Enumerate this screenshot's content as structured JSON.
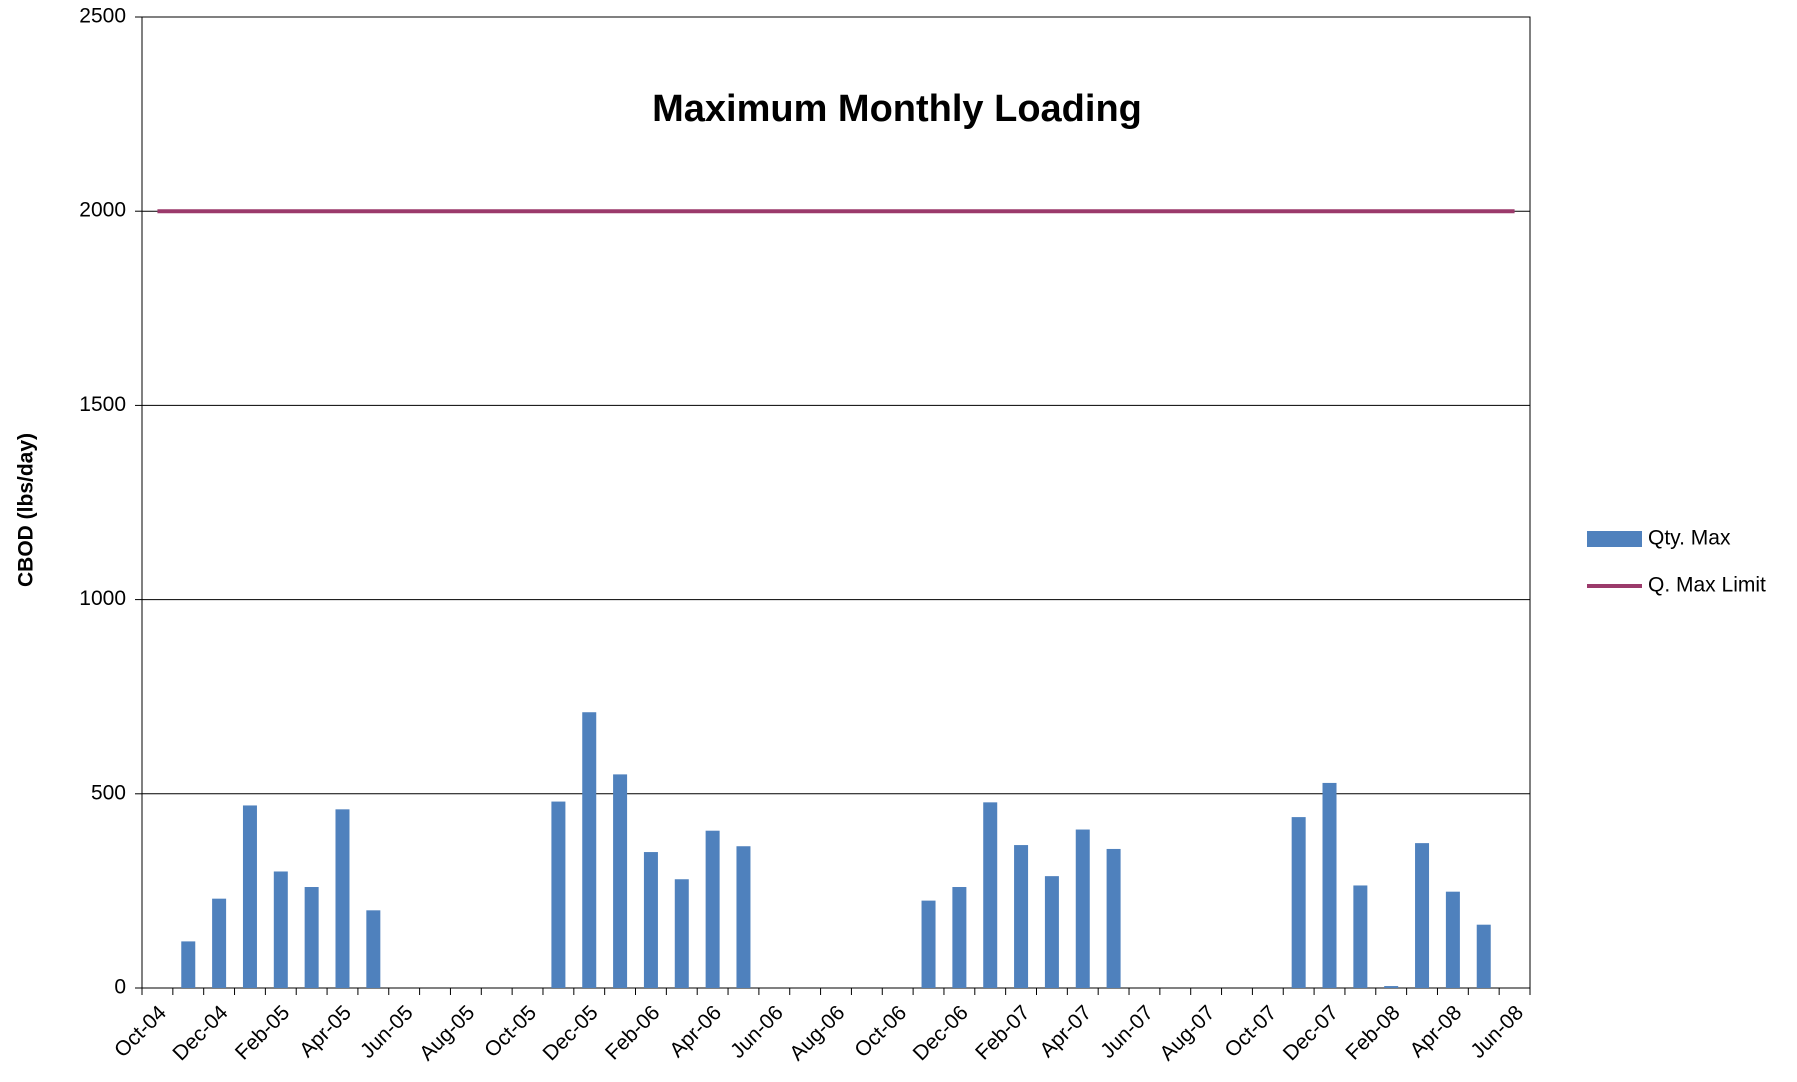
{
  "chart_data": {
    "type": "bar",
    "title": "Maximum Monthly Loading",
    "y_label": "CBOD (lbs/day)",
    "categories": [
      "Oct-04",
      null,
      "Dec-04",
      null,
      "Feb-05",
      null,
      "Apr-05",
      null,
      "Jun-05",
      null,
      "Aug-05",
      null,
      "Oct-05",
      null,
      "Dec-05",
      null,
      "Feb-06",
      null,
      "Apr-06",
      null,
      "Jun-06",
      null,
      "Aug-06",
      null,
      "Oct-06",
      null,
      "Dec-06",
      null,
      "Feb-07",
      null,
      "Apr-07",
      null,
      "Jun-07",
      null,
      "Aug-07",
      null,
      "Oct-07",
      null,
      "Dec-07",
      null,
      "Feb-08",
      null,
      "Apr-08",
      null,
      "Jun-08"
    ],
    "series": [
      {
        "name": "Qty. Max",
        "type": "bar",
        "color": "#4f81bd",
        "values": [
          null,
          120,
          230,
          470,
          300,
          260,
          460,
          200,
          null,
          null,
          null,
          null,
          null,
          480,
          710,
          550,
          350,
          280,
          405,
          365,
          null,
          null,
          null,
          null,
          null,
          225,
          260,
          478,
          368,
          288,
          408,
          358,
          null,
          null,
          null,
          null,
          null,
          440,
          528,
          264,
          5,
          373,
          248,
          163,
          null
        ]
      },
      {
        "name": "Q. Max Limit",
        "type": "line",
        "color": "#9b3a6b",
        "values": [
          2000,
          2000,
          2000,
          2000,
          2000,
          2000,
          2000,
          2000,
          2000,
          2000,
          2000,
          2000,
          2000,
          2000,
          2000,
          2000,
          2000,
          2000,
          2000,
          2000,
          2000,
          2000,
          2000,
          2000,
          2000,
          2000,
          2000,
          2000,
          2000,
          2000,
          2000,
          2000,
          2000,
          2000,
          2000,
          2000,
          2000,
          2000,
          2000,
          2000,
          2000,
          2000,
          2000,
          2000,
          2000
        ]
      }
    ],
    "ylim": [
      0,
      2500
    ],
    "yticks": [
      0,
      500,
      1000,
      1500,
      2000,
      2500
    ],
    "grid": true,
    "legend": "right"
  }
}
